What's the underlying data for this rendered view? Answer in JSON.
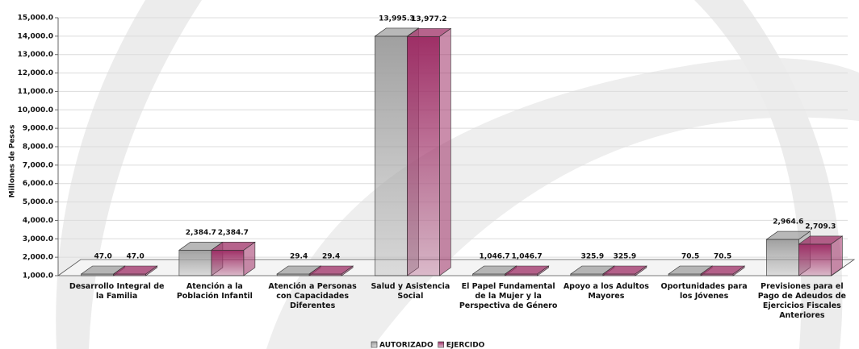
{
  "chart_data": {
    "type": "bar3d",
    "y_label": "Millones de Pesos",
    "categories": [
      "Desarrollo Integral de la Familia",
      "Atención a la Población Infantil",
      "Atención a Personas con Capacidades Diferentes",
      "Salud y Asistencia Social",
      "El Papel Fundamental de la Mujer y la Perspectiva de Género",
      "Apoyo a los Adultos Mayores",
      "Oportunidades para los Jóvenes",
      "Previsiones para el Pago de Adeudos de Ejercicios Fiscales Anteriores"
    ],
    "series": [
      {
        "name": "AUTORIZADO",
        "color": "#a0a0a0",
        "values": [
          47.0,
          2384.7,
          29.4,
          13995.3,
          1046.7,
          325.9,
          70.5,
          2964.6
        ],
        "value_labels": [
          "47.0",
          "2,384.7",
          "29.4",
          "13,995.3",
          "1,046.7",
          "325.9",
          "70.5",
          "2,964.6"
        ]
      },
      {
        "name": "EJERCIDO",
        "color": "#9e2f66",
        "values": [
          47.0,
          2384.7,
          29.4,
          13977.2,
          1046.7,
          325.9,
          70.5,
          2709.3
        ],
        "value_labels": [
          "47.0",
          "2,384.7",
          "29.4",
          "13,977.2",
          "1,046.7",
          "325.9",
          "70.5",
          "2,709.3"
        ]
      }
    ],
    "ylim": [
      1000,
      15000
    ],
    "yticks": [
      {
        "value": 1000,
        "label": "1,000.0"
      },
      {
        "value": 2000,
        "label": "2,000.0"
      },
      {
        "value": 3000,
        "label": "3,000.0"
      },
      {
        "value": 4000,
        "label": "4,000.0"
      },
      {
        "value": 5000,
        "label": "5,000.0"
      },
      {
        "value": 6000,
        "label": "6,000.0"
      },
      {
        "value": 7000,
        "label": "7,000.0"
      },
      {
        "value": 8000,
        "label": "8,000.0"
      },
      {
        "value": 9000,
        "label": "9,000.0"
      },
      {
        "value": 10000,
        "label": "10,000.0"
      },
      {
        "value": 11000,
        "label": "11,000.0"
      },
      {
        "value": 12000,
        "label": "12,000.0"
      },
      {
        "value": 13000,
        "label": "13,000.0"
      },
      {
        "value": 14000,
        "label": "14,000.0"
      },
      {
        "value": 15000,
        "label": "15,000.0"
      }
    ],
    "grid": true
  }
}
